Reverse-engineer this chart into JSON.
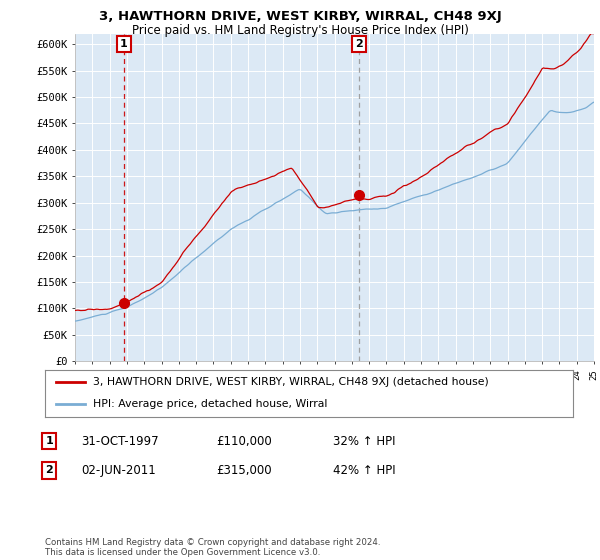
{
  "title": "3, HAWTHORN DRIVE, WEST KIRBY, WIRRAL, CH48 9XJ",
  "subtitle": "Price paid vs. HM Land Registry's House Price Index (HPI)",
  "ylabel_ticks": [
    "£0",
    "£50K",
    "£100K",
    "£150K",
    "£200K",
    "£250K",
    "£300K",
    "£350K",
    "£400K",
    "£450K",
    "£500K",
    "£550K",
    "£600K"
  ],
  "ylim": [
    0,
    620000
  ],
  "yticks": [
    0,
    50000,
    100000,
    150000,
    200000,
    250000,
    300000,
    350000,
    400000,
    450000,
    500000,
    550000,
    600000
  ],
  "sale1_price": 110000,
  "sale1_label": "1",
  "sale1_date_str": "31-OCT-1997",
  "sale1_price_str": "£110,000",
  "sale1_hpi_str": "32% ↑ HPI",
  "sale2_price": 315000,
  "sale2_label": "2",
  "sale2_date_str": "02-JUN-2011",
  "sale2_price_str": "£315,000",
  "sale2_hpi_str": "42% ↑ HPI",
  "legend_line1": "3, HAWTHORN DRIVE, WEST KIRBY, WIRRAL, CH48 9XJ (detached house)",
  "legend_line2": "HPI: Average price, detached house, Wirral",
  "footer": "Contains HM Land Registry data © Crown copyright and database right 2024.\nThis data is licensed under the Open Government Licence v3.0.",
  "line_color_red": "#cc0000",
  "line_color_blue": "#7aadd4",
  "bg_color": "#ffffff",
  "plot_bg_color": "#dce9f5",
  "grid_color": "#ffffff",
  "annotation_box_color": "#cc0000",
  "sale1_x": 1997.833,
  "sale2_x": 2011.417
}
